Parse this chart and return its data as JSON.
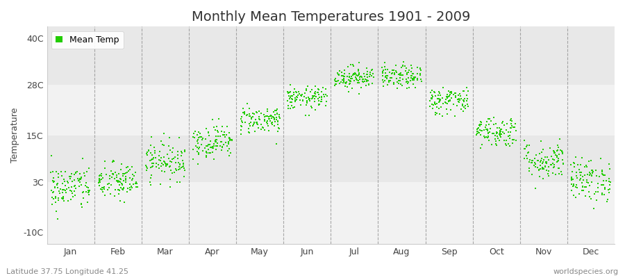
{
  "title": "Monthly Mean Temperatures 1901 - 2009",
  "ylabel": "Temperature",
  "subtitle_left": "Latitude 37.75 Longitude 41.25",
  "subtitle_right": "worldspecies.org",
  "legend_label": "Mean Temp",
  "yticks": [
    -10,
    3,
    15,
    28,
    40
  ],
  "ytick_labels": [
    "-10C",
    "3C",
    "15C",
    "28C",
    "40C"
  ],
  "ylim": [
    -13,
    43
  ],
  "months": [
    "Jan",
    "Feb",
    "Mar",
    "Apr",
    "May",
    "Jun",
    "Jul",
    "Aug",
    "Sep",
    "Oct",
    "Nov",
    "Dec"
  ],
  "monthly_means": [
    1.5,
    3.0,
    8.5,
    13.5,
    19.0,
    24.5,
    30.0,
    30.0,
    24.0,
    16.0,
    8.5,
    3.5
  ],
  "monthly_stds": [
    3.0,
    2.5,
    2.5,
    2.2,
    1.8,
    1.5,
    1.5,
    1.5,
    1.8,
    2.0,
    2.5,
    2.8
  ],
  "n_years": 109,
  "dot_color": "#22cc00",
  "dot_size": 3,
  "bg_color": "#ffffff",
  "plot_bg_color_light": "#f2f2f2",
  "plot_bg_color_dark": "#e8e8e8",
  "dashed_line_color": "#888888",
  "title_fontsize": 14,
  "label_fontsize": 9,
  "tick_fontsize": 9,
  "subtitle_fontsize": 8,
  "band_ranges": [
    [
      -13,
      3
    ],
    [
      3,
      15
    ],
    [
      15,
      28
    ],
    [
      28,
      43
    ]
  ]
}
